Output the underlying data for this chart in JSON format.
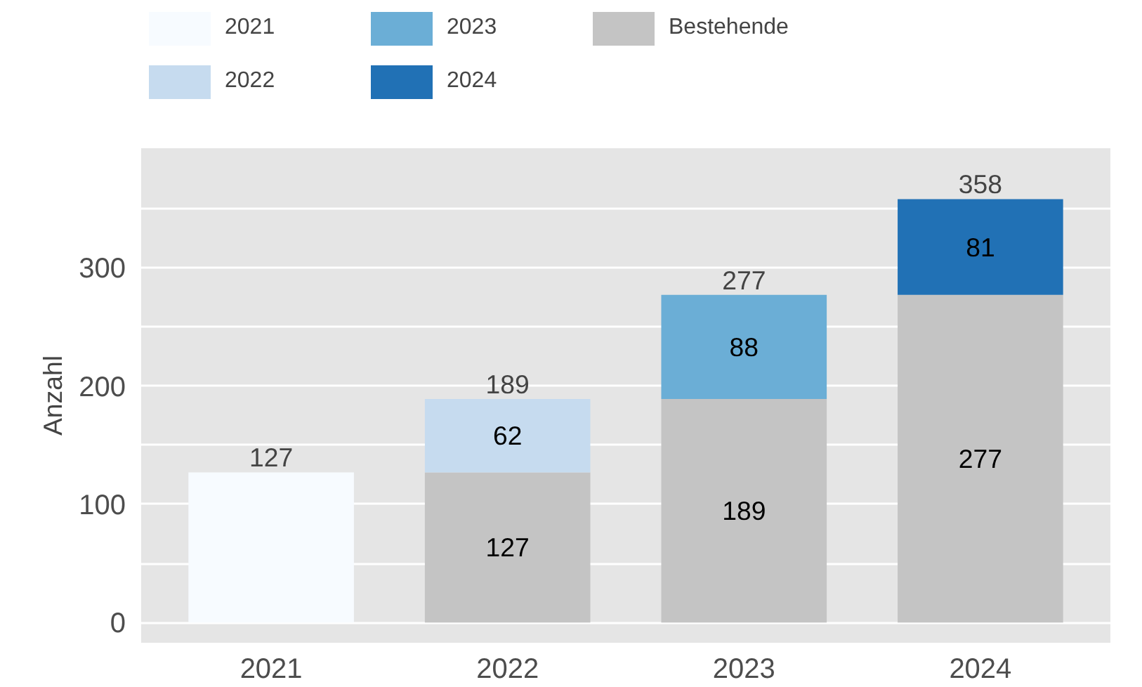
{
  "chart_data": {
    "type": "bar",
    "stacked": true,
    "ylabel": "Anzahl",
    "categories": [
      "2021",
      "2022",
      "2023",
      "2024"
    ],
    "series": [
      {
        "name": "Bestehende",
        "color": "#c4c4c4",
        "values": [
          null,
          127,
          189,
          277
        ],
        "value_labels": [
          null,
          "127",
          "189",
          "277"
        ]
      },
      {
        "name": "2021",
        "color": "#f7fbff",
        "values": [
          127,
          null,
          null,
          null
        ]
      },
      {
        "name": "2022",
        "color": "#c6dbef",
        "values": [
          null,
          62,
          null,
          null
        ],
        "value_labels": [
          null,
          "62",
          null,
          null
        ]
      },
      {
        "name": "2023",
        "color": "#6baed6",
        "values": [
          null,
          null,
          88,
          null
        ],
        "value_labels": [
          null,
          null,
          "88",
          null
        ]
      },
      {
        "name": "2024",
        "color": "#2171b5",
        "values": [
          null,
          null,
          null,
          81
        ],
        "value_labels": [
          null,
          null,
          null,
          "81"
        ]
      }
    ],
    "totals": [
      "127",
      "189",
      "277",
      "358"
    ],
    "ylim": [
      -17,
      401
    ],
    "yticks": [
      0,
      {
        "value": 50,
        "label": null
      },
      100,
      {
        "value": 150,
        "label": null
      },
      200,
      {
        "value": 250,
        "label": null
      },
      300,
      {
        "value": 350,
        "label": null
      }
    ],
    "grid": "y",
    "legend": "top"
  }
}
